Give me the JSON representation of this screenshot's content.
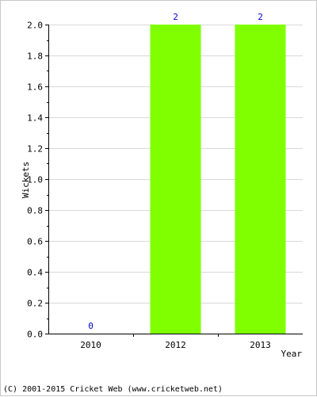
{
  "colors": {
    "bar": "#80ff00",
    "grid": "#d9d9d9",
    "axis": "#000000",
    "value_label": "#0000cc"
  },
  "chart_data": {
    "type": "bar",
    "categories": [
      "2010",
      "2012",
      "2013"
    ],
    "values": [
      0,
      2,
      2
    ],
    "data_labels": [
      "0",
      "2",
      "2"
    ],
    "xlabel": "Year",
    "ylabel": "Wickets",
    "ylim": [
      0,
      2.0
    ],
    "yticks": [
      "0.0",
      "0.2",
      "0.4",
      "0.6",
      "0.8",
      "1.0",
      "1.2",
      "1.4",
      "1.6",
      "1.8",
      "2.0"
    ],
    "grid": true
  },
  "footer": {
    "text": "(C) 2001-2015 Cricket Web (www.cricketweb.net)"
  }
}
